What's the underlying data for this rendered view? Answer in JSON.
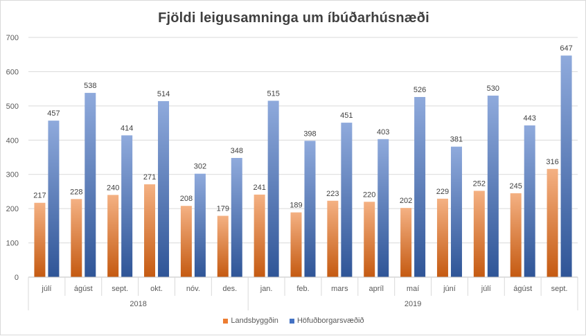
{
  "chart_data": {
    "type": "bar",
    "title": "Fjöldi leigusamninga  um íbúðarhúsnæði",
    "ylim": [
      0,
      700
    ],
    "yticks": [
      0,
      100,
      200,
      300,
      400,
      500,
      600,
      700
    ],
    "grid": true,
    "legend_position": "bottom",
    "categories": [
      "júlí",
      "ágúst",
      "sept.",
      "okt.",
      "nóv.",
      "des.",
      "jan.",
      "feb.",
      "mars",
      "apríl",
      "maí",
      "júní",
      "júlí",
      "ágúst",
      "sept."
    ],
    "groups": [
      {
        "label": "2018",
        "count": 6
      },
      {
        "label": "2019",
        "count": 9
      }
    ],
    "series": [
      {
        "name": "Landsbyggðin",
        "color": "#ed7d31",
        "values": [
          217,
          228,
          240,
          271,
          208,
          179,
          241,
          189,
          223,
          220,
          202,
          229,
          252,
          245,
          316
        ]
      },
      {
        "name": "Höfuðborgarsvæðið",
        "color": "#4472c4",
        "values": [
          457,
          538,
          414,
          514,
          302,
          348,
          515,
          398,
          451,
          403,
          526,
          381,
          530,
          443,
          647
        ]
      }
    ]
  }
}
